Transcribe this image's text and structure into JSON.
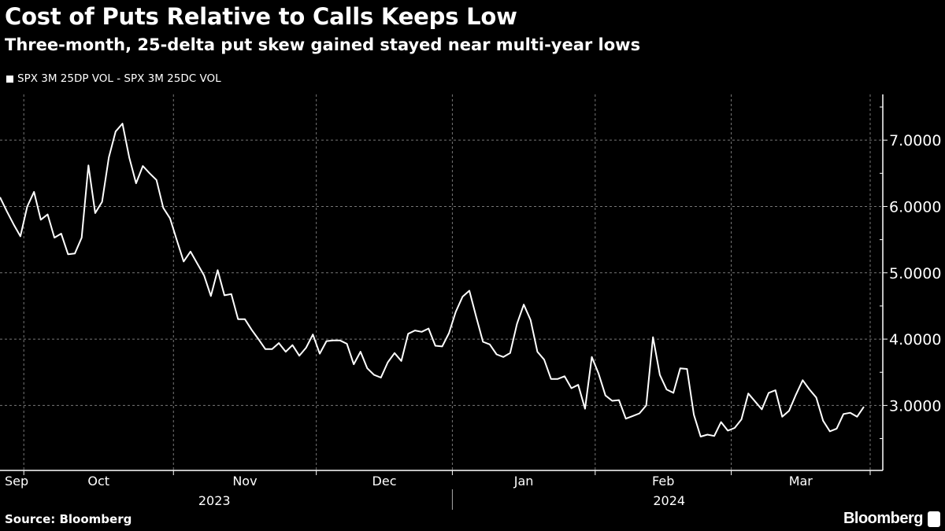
{
  "chart_data": {
    "type": "line",
    "title": "Cost of Puts Relative to Calls Keeps Low",
    "subtitle": "Three-month, 25-delta put skew gained stayed near multi-year lows",
    "source": "Source: Bloomberg",
    "brand": "Bloomberg",
    "legend_placement": "top-left",
    "grid": true,
    "colors": {
      "background": "#000000",
      "line": "#ffffff",
      "grid": "#777777"
    },
    "ylim": [
      2.02,
      7.69
    ],
    "yticks": [
      3,
      4,
      5,
      6,
      7
    ],
    "ytick_labels": [
      "3.0000",
      "4.0000",
      "5.0000",
      "6.0000",
      "7.0000"
    ],
    "month_labels": [
      "Sep",
      "Oct",
      "Nov",
      "Dec",
      "Jan",
      "Feb",
      "Mar"
    ],
    "year_labels": [
      "2023",
      "2024"
    ],
    "series": [
      {
        "name": "SPX 3M 25DP VOL - SPX 3M 25DC VOL",
        "x": [
          "2023-09-26",
          "2023-09-27",
          "2023-09-28",
          "2023-09-29",
          "2023-10-02",
          "2023-10-03",
          "2023-10-04",
          "2023-10-05",
          "2023-10-06",
          "2023-10-09",
          "2023-10-10",
          "2023-10-11",
          "2023-10-12",
          "2023-10-13",
          "2023-10-16",
          "2023-10-17",
          "2023-10-18",
          "2023-10-19",
          "2023-10-20",
          "2023-10-23",
          "2023-10-24",
          "2023-10-25",
          "2023-10-26",
          "2023-10-27",
          "2023-10-30",
          "2023-10-31",
          "2023-11-01",
          "2023-11-02",
          "2023-11-03",
          "2023-11-06",
          "2023-11-07",
          "2023-11-08",
          "2023-11-09",
          "2023-11-10",
          "2023-11-13",
          "2023-11-14",
          "2023-11-15",
          "2023-11-16",
          "2023-11-17",
          "2023-11-20",
          "2023-11-21",
          "2023-11-22",
          "2023-11-24",
          "2023-11-27",
          "2023-11-28",
          "2023-11-29",
          "2023-11-30",
          "2023-12-01",
          "2023-12-04",
          "2023-12-05",
          "2023-12-06",
          "2023-12-07",
          "2023-12-08",
          "2023-12-11",
          "2023-12-12",
          "2023-12-13",
          "2023-12-14",
          "2023-12-15",
          "2023-12-18",
          "2023-12-19",
          "2023-12-20",
          "2023-12-21",
          "2023-12-22",
          "2023-12-26",
          "2023-12-27",
          "2023-12-28",
          "2023-12-29",
          "2024-01-02",
          "2024-01-03",
          "2024-01-04",
          "2024-01-05",
          "2024-01-08",
          "2024-01-09",
          "2024-01-10",
          "2024-01-11",
          "2024-01-12",
          "2024-01-16",
          "2024-01-17",
          "2024-01-18",
          "2024-01-19",
          "2024-01-22",
          "2024-01-23",
          "2024-01-24",
          "2024-01-25",
          "2024-01-26",
          "2024-01-29",
          "2024-01-30",
          "2024-01-31",
          "2024-02-01",
          "2024-02-02",
          "2024-02-05",
          "2024-02-06",
          "2024-02-07",
          "2024-02-08",
          "2024-02-09",
          "2024-02-12",
          "2024-02-13",
          "2024-02-14",
          "2024-02-15",
          "2024-02-16",
          "2024-02-20",
          "2024-02-21",
          "2024-02-22",
          "2024-02-23",
          "2024-02-26",
          "2024-02-27",
          "2024-02-28",
          "2024-02-29",
          "2024-03-01",
          "2024-03-04",
          "2024-03-05",
          "2024-03-06",
          "2024-03-07",
          "2024-03-08",
          "2024-03-11",
          "2024-03-12",
          "2024-03-13",
          "2024-03-14",
          "2024-03-15",
          "2024-03-18",
          "2024-03-19",
          "2024-03-20",
          "2024-03-21",
          "2024-03-22",
          "2024-03-25",
          "2024-03-26",
          "2024-03-27",
          "2024-03-28"
        ],
        "values": [
          6.14,
          5.93,
          5.73,
          5.55,
          6.0,
          6.22,
          5.8,
          5.88,
          5.53,
          5.59,
          5.28,
          5.29,
          5.53,
          6.62,
          5.9,
          6.07,
          6.74,
          7.13,
          7.25,
          6.74,
          6.35,
          6.61,
          6.5,
          6.4,
          5.98,
          5.82,
          5.49,
          5.17,
          5.32,
          5.14,
          4.96,
          4.65,
          5.04,
          4.66,
          4.68,
          4.3,
          4.3,
          4.14,
          4.0,
          3.85,
          3.85,
          3.94,
          3.81,
          3.91,
          3.75,
          3.87,
          4.07,
          3.78,
          3.97,
          3.98,
          3.98,
          3.93,
          3.62,
          3.81,
          3.56,
          3.46,
          3.42,
          3.65,
          3.79,
          3.67,
          4.08,
          4.13,
          4.11,
          4.16,
          3.9,
          3.89,
          4.09,
          4.41,
          4.64,
          4.73,
          4.34,
          3.96,
          3.92,
          3.77,
          3.73,
          3.79,
          4.23,
          4.52,
          4.29,
          3.81,
          3.69,
          3.4,
          3.4,
          3.44,
          3.26,
          3.31,
          2.95,
          3.73,
          3.48,
          3.15,
          3.07,
          3.08,
          2.8,
          2.84,
          2.88,
          3.0,
          4.03,
          3.46,
          3.24,
          3.19,
          3.56,
          3.55,
          2.86,
          2.53,
          2.56,
          2.54,
          2.75,
          2.62,
          2.66,
          2.79,
          3.18,
          3.06,
          2.94,
          3.19,
          3.23,
          2.83,
          2.92,
          3.16,
          3.38,
          3.24,
          3.12,
          2.77,
          2.61,
          2.65,
          2.87,
          2.89,
          2.83,
          2.98
        ]
      }
    ]
  }
}
